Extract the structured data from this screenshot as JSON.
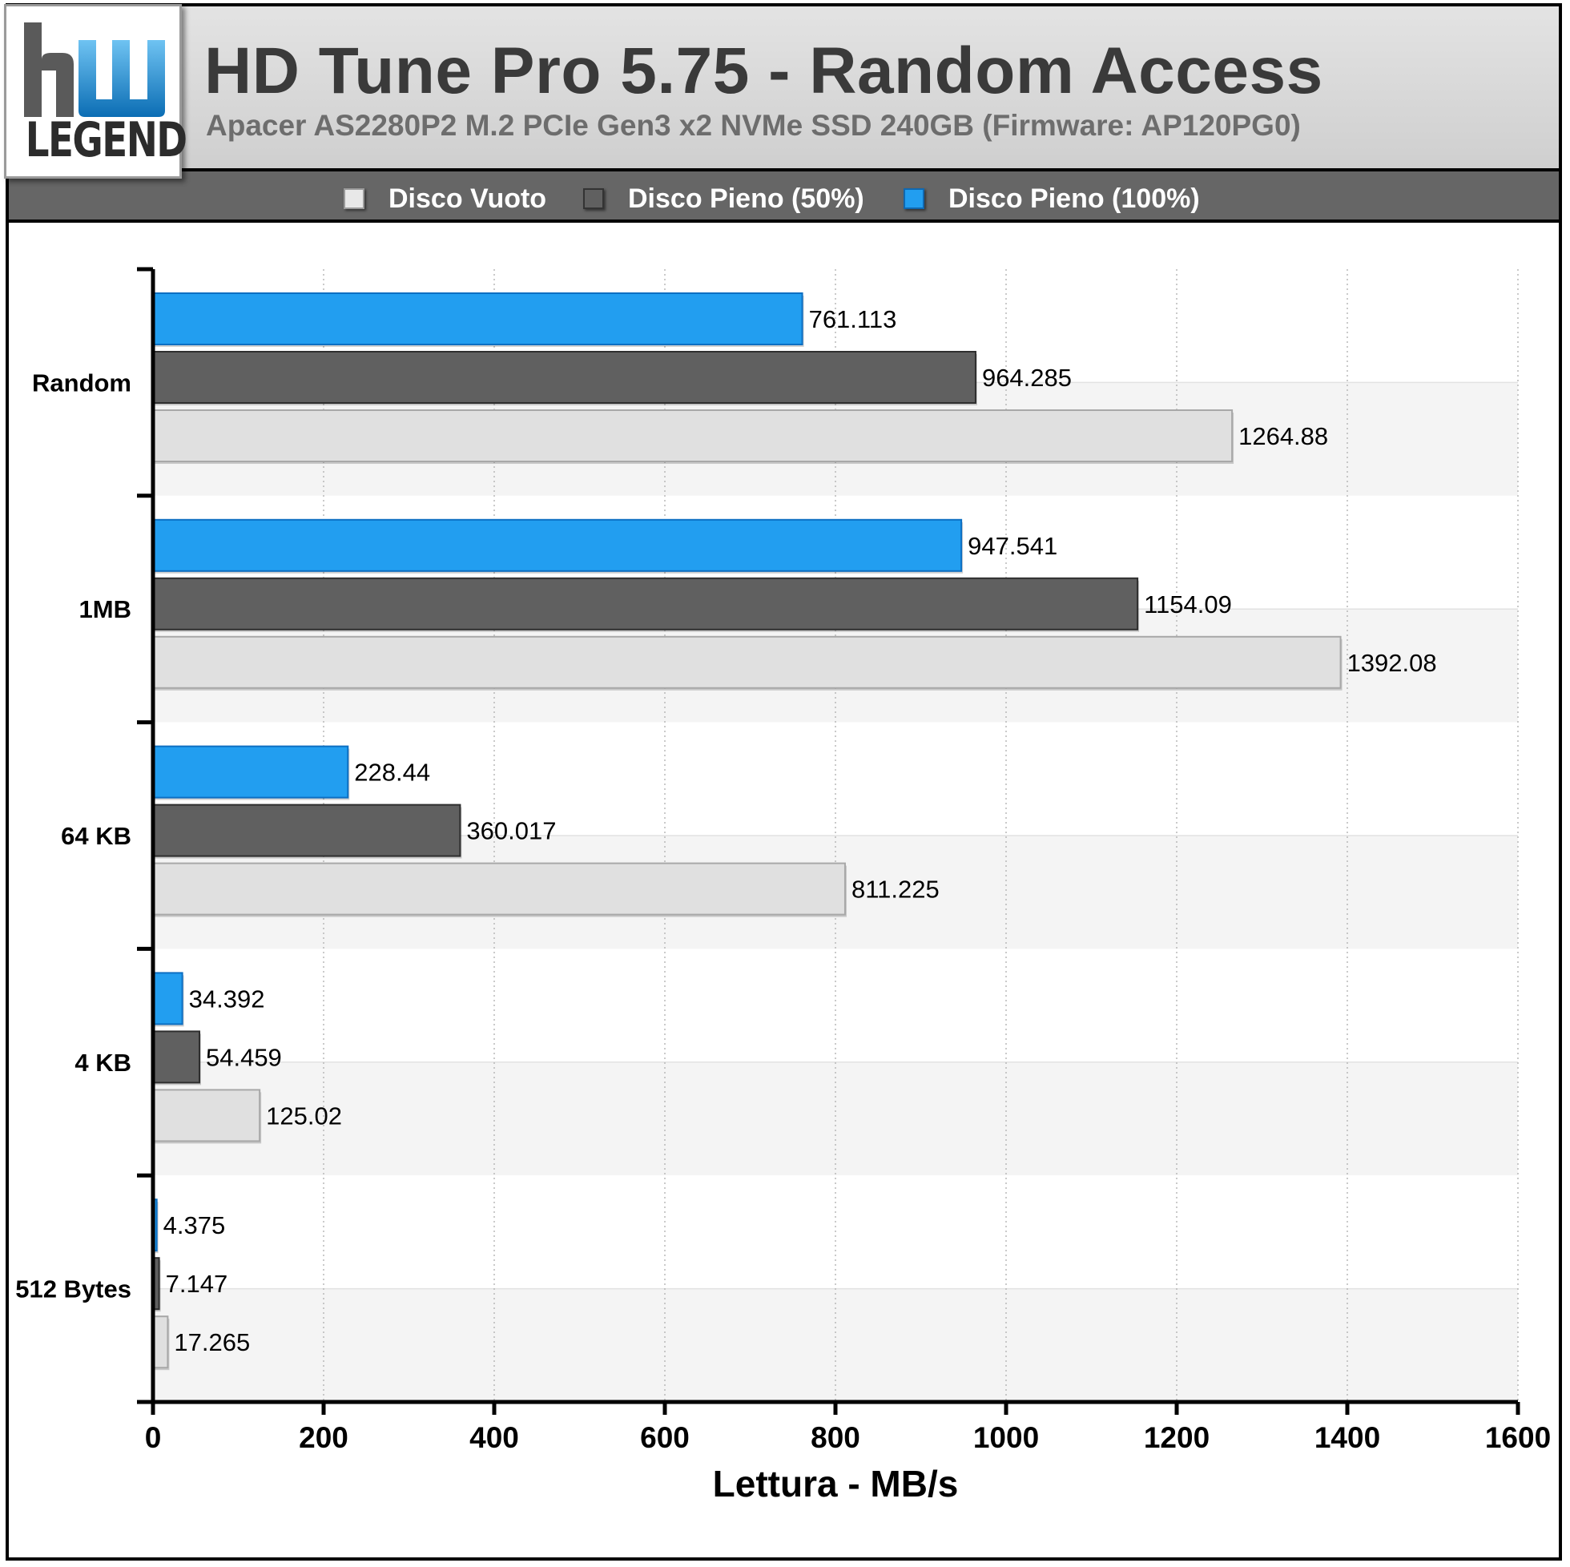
{
  "header": {
    "title": "HD Tune Pro 5.75 - Random Access",
    "subtitle": "Apacer AS2280P2 M.2 PCIe Gen3 x2 NVMe SSD 240GB (Firmware: AP120PG0)",
    "logo_text": "LEGEND"
  },
  "colors": {
    "header_bg": "#d6d6d6",
    "legend_bg": "#666666",
    "series_empty": "#e0e0e0",
    "series_half": "#606060",
    "series_full": "#229ef0",
    "logo_blue": "#1f8fd6"
  },
  "chart_data": {
    "type": "bar",
    "orientation": "horizontal",
    "title": "HD Tune Pro 5.75 - Random Access",
    "subtitle": "Apacer AS2280P2 M.2 PCIe Gen3 x2 NVMe SSD 240GB (Firmware: AP120PG0)",
    "xlabel": "Lettura - MB/s",
    "ylabel": "",
    "xlim": [
      0,
      1600
    ],
    "x_ticks": [
      0,
      200,
      400,
      600,
      800,
      1000,
      1200,
      1400,
      1600
    ],
    "grid": "vertical dotted",
    "legend_position": "top",
    "categories": [
      "Random",
      "1MB",
      "64 KB",
      "4 KB",
      "512 Bytes"
    ],
    "series": [
      {
        "name": "Disco Vuoto",
        "color": "#e0e0e0",
        "values": [
          1264.88,
          1392.08,
          811.225,
          125.02,
          17.265
        ],
        "labels": [
          "1264.88",
          "1392.08",
          "811.225",
          "125.02",
          "17.265"
        ]
      },
      {
        "name": "Disco Pieno (50%)",
        "color": "#606060",
        "values": [
          964.285,
          1154.09,
          360.017,
          54.459,
          7.147
        ],
        "labels": [
          "964.285",
          "1154.09",
          "360.017",
          "54.459",
          "7.147"
        ]
      },
      {
        "name": "Disco Pieno (100%)",
        "color": "#229ef0",
        "values": [
          761.113,
          947.541,
          228.44,
          34.392,
          4.375
        ],
        "labels": [
          "761.113",
          "947.541",
          "228.44",
          "34.392",
          "4.375"
        ]
      }
    ]
  }
}
